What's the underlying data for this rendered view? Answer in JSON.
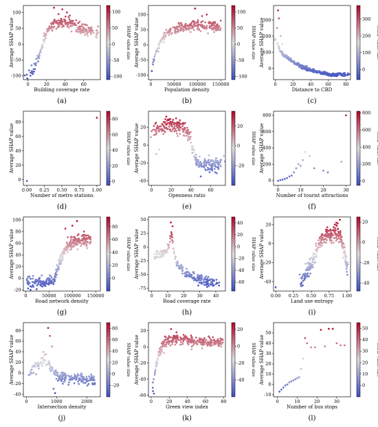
{
  "figure": {
    "colormap": {
      "low": "#3b4cc0",
      "mid": "#dddddd",
      "high": "#b40426"
    },
    "point_radius_note": "",
    "panels_grid": {
      "rows": 4,
      "cols": 3
    }
  },
  "chart_data": [
    {
      "id": "a",
      "caption": "(a)",
      "type": "scatter",
      "xlabel": "Building coverage rate",
      "ylabel": "Average SHAP value",
      "colorbar_label": "SHAP value size",
      "xlim": [
        -5,
        78
      ],
      "ylim": [
        -112,
        122
      ],
      "xticks": [
        0,
        20,
        40,
        60
      ],
      "yticks": [
        -100,
        -50,
        0,
        50,
        100
      ],
      "cbar_range": [
        -110,
        120
      ],
      "cbar_ticks": [
        -100,
        -50,
        0,
        50,
        100
      ],
      "trend": [
        [
          1,
          -100
        ],
        [
          5,
          -85
        ],
        [
          10,
          -55
        ],
        [
          14,
          -20
        ],
        [
          17,
          15
        ],
        [
          20,
          40
        ],
        [
          25,
          55
        ],
        [
          32,
          65
        ],
        [
          40,
          70
        ],
        [
          50,
          60
        ],
        [
          60,
          45
        ],
        [
          70,
          40
        ]
      ],
      "spread": [
        10,
        14
      ],
      "n": 260,
      "outliers": [
        [
          28,
          115
        ],
        [
          37,
          110
        ],
        [
          42,
          100
        ],
        [
          33,
          95
        ],
        [
          45,
          90
        ]
      ]
    },
    {
      "id": "b",
      "caption": "(b)",
      "type": "scatter",
      "xlabel": "Population density",
      "ylabel": "Average SHAP value",
      "colorbar_label": "SHAP value size",
      "xlim": [
        -5000,
        160000
      ],
      "ylim": [
        -115,
        130
      ],
      "xticks": [
        0,
        50000,
        100000,
        150000
      ],
      "yticks": [
        -100,
        -50,
        0,
        50,
        100
      ],
      "cbar_range": [
        -110,
        120
      ],
      "cbar_ticks": [
        -100,
        -50,
        0,
        50,
        100
      ],
      "trend": [
        [
          0,
          -100
        ],
        [
          5000,
          -60
        ],
        [
          12000,
          -20
        ],
        [
          20000,
          10
        ],
        [
          30000,
          30
        ],
        [
          45000,
          45
        ],
        [
          60000,
          55
        ],
        [
          80000,
          60
        ],
        [
          100000,
          65
        ],
        [
          130000,
          60
        ],
        [
          150000,
          55
        ]
      ],
      "spread": [
        12,
        12
      ],
      "n": 240,
      "outliers": [
        [
          95000,
          120
        ],
        [
          120000,
          100
        ],
        [
          150000,
          80
        ],
        [
          110000,
          95
        ]
      ]
    },
    {
      "id": "c",
      "caption": "(c)",
      "type": "scatter",
      "xlabel": "Distance to CBD",
      "ylabel": "Average SHAP value",
      "colorbar_label": "SHAP value size",
      "xlim": [
        -2,
        85
      ],
      "ylim": [
        -70,
        390
      ],
      "xticks": [
        0,
        20,
        40,
        60,
        80
      ],
      "yticks": [
        0,
        100,
        200,
        300
      ],
      "cbar_range": [
        -60,
        380
      ],
      "cbar_ticks": [
        0,
        100,
        200,
        300
      ],
      "trend": [
        [
          1,
          180
        ],
        [
          5,
          110
        ],
        [
          10,
          80
        ],
        [
          20,
          40
        ],
        [
          30,
          10
        ],
        [
          40,
          -10
        ],
        [
          50,
          -25
        ],
        [
          60,
          -35
        ],
        [
          70,
          -40
        ],
        [
          80,
          -40
        ]
      ],
      "spread": [
        20,
        8
      ],
      "n": 340,
      "outliers": [
        [
          3,
          360
        ],
        [
          4,
          310
        ],
        [
          2,
          250
        ],
        [
          6,
          200
        ],
        [
          8,
          150
        ]
      ]
    },
    {
      "id": "d",
      "caption": "(d)",
      "type": "scatter",
      "xlabel": "Number of metro stations",
      "ylabel": "Average SHAP value",
      "colorbar_label": "SHAP value size",
      "xlim": [
        -0.05,
        1.05
      ],
      "ylim": [
        -8,
        95
      ],
      "xticks": [
        0.0,
        0.25,
        0.5,
        0.75,
        1.0
      ],
      "xtick_labels": [
        "0.00",
        "0.25",
        "0.50",
        "0.75",
        "1.00"
      ],
      "yticks": [
        0,
        20,
        40,
        60,
        80
      ],
      "cbar_range": [
        -5,
        90
      ],
      "cbar_ticks": [
        0,
        20,
        40,
        60,
        80
      ],
      "points": [
        [
          0.0,
          -2
        ],
        [
          1.0,
          86
        ]
      ]
    },
    {
      "id": "e",
      "caption": "(e)",
      "type": "scatter",
      "xlabel": "Openness ratio",
      "ylabel": "Average SHAP value",
      "colorbar_label": "SHAP value size",
      "xlim": [
        -3,
        75
      ],
      "ylim": [
        -45,
        38
      ],
      "xticks": [
        0,
        20,
        40,
        60
      ],
      "yticks": [
        -40,
        -20,
        0,
        20
      ],
      "cbar_range": [
        -40,
        35
      ],
      "cbar_ticks": [
        -20,
        0,
        20
      ],
      "trend": [
        [
          1,
          15
        ],
        [
          10,
          20
        ],
        [
          20,
          22
        ],
        [
          30,
          20
        ],
        [
          38,
          12
        ],
        [
          42,
          -5
        ],
        [
          46,
          -20
        ],
        [
          55,
          -22
        ],
        [
          65,
          -22
        ],
        [
          72,
          -20
        ]
      ],
      "spread": [
        6,
        6
      ],
      "n": 300,
      "outliers": [
        [
          15,
          32
        ],
        [
          25,
          30
        ],
        [
          5,
          -10
        ],
        [
          8,
          -5
        ],
        [
          50,
          -35
        ]
      ]
    },
    {
      "id": "f",
      "caption": "(f)",
      "type": "scatter",
      "xlabel": "Number of tourist attractions",
      "ylabel": "Average SHAP value",
      "colorbar_label": "SHAP value size",
      "xlim": [
        -2,
        32
      ],
      "ylim": [
        -60,
        850
      ],
      "xticks": [
        0,
        10,
        20,
        30
      ],
      "yticks": [
        0,
        200,
        400,
        600,
        800
      ],
      "cbar_range": [
        -50,
        820
      ],
      "cbar_ticks": [
        0,
        200,
        400,
        600,
        800
      ],
      "points": [
        [
          0,
          -5
        ],
        [
          1,
          5
        ],
        [
          2,
          10
        ],
        [
          3,
          20
        ],
        [
          4,
          30
        ],
        [
          5,
          50
        ],
        [
          6,
          60
        ],
        [
          7,
          100
        ],
        [
          8,
          150
        ],
        [
          9,
          200
        ],
        [
          10,
          180
        ],
        [
          11,
          250
        ],
        [
          12,
          350
        ],
        [
          14,
          300
        ],
        [
          16,
          150
        ],
        [
          20,
          120
        ],
        [
          22,
          100
        ],
        [
          28,
          230
        ],
        [
          30,
          800
        ]
      ]
    },
    {
      "id": "g",
      "caption": "(g)",
      "type": "scatter",
      "xlabel": "Road network density",
      "ylabel": "Average SHAP value",
      "colorbar_label": "SHAP value size",
      "xlim": [
        -5000,
        160000
      ],
      "ylim": [
        -22,
        105
      ],
      "xticks": [
        0,
        50000,
        100000,
        150000
      ],
      "yticks": [
        -20,
        0,
        20,
        40,
        60,
        80,
        100
      ],
      "cbar_range": [
        -20,
        95
      ],
      "cbar_ticks": [
        0,
        20,
        40,
        60,
        80
      ],
      "trend": [
        [
          2000,
          -5
        ],
        [
          20000,
          -8
        ],
        [
          40000,
          -8
        ],
        [
          55000,
          -5
        ],
        [
          62000,
          0
        ],
        [
          70000,
          20
        ],
        [
          80000,
          40
        ],
        [
          90000,
          55
        ],
        [
          100000,
          60
        ],
        [
          115000,
          65
        ],
        [
          140000,
          65
        ]
      ],
      "spread": [
        6,
        8
      ],
      "n": 320,
      "outliers": [
        [
          85000,
          85
        ],
        [
          100000,
          90
        ],
        [
          110000,
          98
        ],
        [
          125000,
          80
        ]
      ]
    },
    {
      "id": "h",
      "caption": "(h)",
      "type": "scatter",
      "xlabel": "Road coverage rate",
      "ylabel": "Average SHAP value",
      "colorbar_label": "SHAP value size",
      "xlim": [
        -2,
        46
      ],
      "ylim": [
        -80,
        55
      ],
      "xticks": [
        0,
        10,
        20,
        30,
        40
      ],
      "yticks": [
        -75,
        -50,
        -25,
        0,
        25,
        50
      ],
      "cbar_range": [
        -75,
        50
      ],
      "cbar_ticks": [
        -60,
        -40,
        -20,
        0,
        20,
        40
      ],
      "trend": [
        [
          2,
          -15
        ],
        [
          6,
          -15
        ],
        [
          9,
          -10
        ],
        [
          11,
          5
        ],
        [
          12,
          25
        ],
        [
          13,
          15
        ],
        [
          14,
          -10
        ],
        [
          16,
          -30
        ],
        [
          20,
          -45
        ],
        [
          30,
          -60
        ],
        [
          40,
          -65
        ]
      ],
      "spread": [
        5,
        7
      ],
      "n": 200,
      "outliers": [
        [
          12,
          45
        ],
        [
          13,
          38
        ],
        [
          25,
          -55
        ],
        [
          35,
          -68
        ],
        [
          42,
          -70
        ]
      ]
    },
    {
      "id": "i",
      "caption": "(i)",
      "type": "scatter",
      "xlabel": "Land use entropy",
      "ylabel": "Average SHAP value",
      "colorbar_label": "SHAP value size",
      "xlim": [
        -0.03,
        1.05
      ],
      "ylim": [
        -50,
        28
      ],
      "xticks": [
        0.0,
        0.25,
        0.5,
        0.75,
        1.0
      ],
      "xtick_labels": [
        "0.00",
        "0.25",
        "0.50",
        "0.75",
        "1.00"
      ],
      "yticks": [
        -40,
        -20,
        0,
        20
      ],
      "cbar_range": [
        -48,
        25
      ],
      "cbar_ticks": [
        -40,
        -20,
        0,
        20
      ],
      "trend": [
        [
          0.35,
          -40
        ],
        [
          0.45,
          -30
        ],
        [
          0.55,
          -15
        ],
        [
          0.6,
          0
        ],
        [
          0.65,
          5
        ],
        [
          0.7,
          8
        ],
        [
          0.8,
          10
        ],
        [
          0.88,
          12
        ],
        [
          0.92,
          5
        ],
        [
          0.97,
          -10
        ],
        [
          1.0,
          -25
        ]
      ],
      "spread": [
        0.03,
        7
      ],
      "n": 260,
      "outliers": [
        [
          0.0,
          -46
        ],
        [
          0.38,
          -44
        ],
        [
          0.85,
          22
        ],
        [
          0.9,
          25
        ],
        [
          0.83,
          20
        ]
      ]
    },
    {
      "id": "j",
      "caption": "(j)",
      "type": "scatter",
      "xlabel": "Intersection density",
      "ylabel": "Average SHAP value",
      "colorbar_label": "SHAP value size",
      "xlim": [
        -100,
        2450
      ],
      "ylim": [
        -45,
        95
      ],
      "xticks": [
        0,
        1000,
        2000
      ],
      "yticks": [
        -40,
        -20,
        0,
        20,
        40,
        60,
        80
      ],
      "cbar_range": [
        -40,
        90
      ],
      "cbar_ticks": [
        -20,
        0,
        20,
        40,
        60,
        80
      ],
      "trend": [
        [
          50,
          -5
        ],
        [
          200,
          5
        ],
        [
          400,
          15
        ],
        [
          600,
          25
        ],
        [
          750,
          15
        ],
        [
          900,
          0
        ],
        [
          1100,
          -8
        ],
        [
          1500,
          -10
        ],
        [
          2000,
          -12
        ],
        [
          2300,
          -12
        ]
      ],
      "spread": [
        80,
        9
      ],
      "n": 200,
      "outliers": [
        [
          720,
          85
        ],
        [
          780,
          70
        ],
        [
          850,
          50
        ],
        [
          900,
          -30
        ],
        [
          950,
          -38
        ]
      ]
    },
    {
      "id": "k",
      "caption": "(k)",
      "type": "scatter",
      "xlabel": "Green view index",
      "ylabel": "Average SHAP value",
      "colorbar_label": "SHAP value size",
      "xlim": [
        -3,
        82
      ],
      "ylim": [
        -62,
        30
      ],
      "xticks": [
        0,
        20,
        40,
        60,
        80
      ],
      "yticks": [
        -60,
        -40,
        -20,
        0,
        20
      ],
      "cbar_range": [
        -60,
        28
      ],
      "cbar_ticks": [
        -40,
        -20,
        0,
        20
      ],
      "trend": [
        [
          2,
          -45
        ],
        [
          5,
          -25
        ],
        [
          8,
          -10
        ],
        [
          12,
          0
        ],
        [
          18,
          8
        ],
        [
          25,
          10
        ],
        [
          35,
          8
        ],
        [
          50,
          6
        ],
        [
          65,
          5
        ],
        [
          78,
          5
        ]
      ],
      "spread": [
        3,
        5
      ],
      "n": 280,
      "outliers": [
        [
          2,
          -55
        ],
        [
          3,
          -58
        ],
        [
          22,
          22
        ],
        [
          28,
          18
        ]
      ]
    },
    {
      "id": "l",
      "caption": "(l)",
      "type": "scatter",
      "xlabel": "Number of bus stops",
      "ylabel": "Average SHAP value",
      "colorbar_label": "SHAP value size",
      "xlim": [
        -2,
        37
      ],
      "ylim": [
        -12,
        60
      ],
      "xticks": [
        0,
        10,
        20,
        30
      ],
      "yticks": [
        -10,
        0,
        10,
        20,
        30,
        40,
        50
      ],
      "cbar_range": [
        -10,
        55
      ],
      "cbar_ticks": [
        0,
        10,
        20,
        30,
        40,
        50
      ],
      "points": [
        [
          1,
          -7
        ],
        [
          2,
          -5
        ],
        [
          3,
          -3
        ],
        [
          4,
          -1
        ],
        [
          5,
          0
        ],
        [
          6,
          2
        ],
        [
          7,
          3
        ],
        [
          8,
          4
        ],
        [
          9,
          5
        ],
        [
          10,
          6
        ],
        [
          11,
          7
        ],
        [
          12,
          15
        ],
        [
          13,
          25
        ],
        [
          14,
          45
        ],
        [
          15,
          40
        ],
        [
          17,
          36
        ],
        [
          19,
          36
        ],
        [
          22,
          53
        ],
        [
          24,
          37
        ],
        [
          26,
          54
        ],
        [
          28,
          54
        ],
        [
          30,
          40
        ],
        [
          32,
          38
        ],
        [
          34,
          38
        ]
      ]
    }
  ]
}
